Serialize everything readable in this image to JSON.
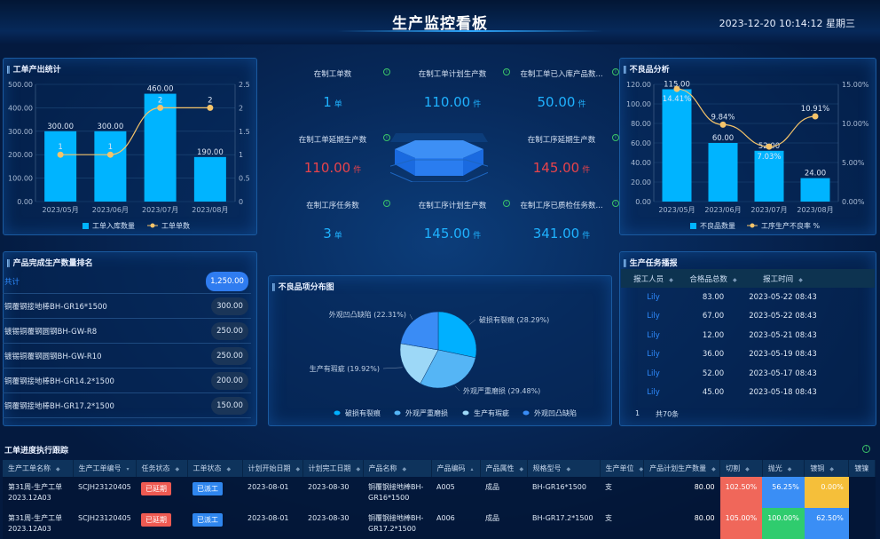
{
  "header": {
    "title": "生产监控看板",
    "datetime": "2023-12-20 10:14:12 星期三"
  },
  "output_panel": {
    "title": "工单产出统计"
  },
  "defect_panel": {
    "title": "不良品分析"
  },
  "kpis": [
    {
      "label": "在制工单数",
      "value": "1",
      "unit": "单",
      "color": "blue"
    },
    {
      "label": "在制工单计划生产数",
      "value": "110.00",
      "unit": "件",
      "color": "blue"
    },
    {
      "label": "在制工单已入库产品数...",
      "value": "50.00",
      "unit": "件",
      "color": "blue"
    },
    {
      "label": "在制工单延期生产数",
      "value": "110.00",
      "unit": "件",
      "color": "red"
    },
    {
      "label": "在制工序延期生产数",
      "value": "145.00",
      "unit": "件",
      "color": "red"
    },
    {
      "label": "在制工序任务数",
      "value": "3",
      "unit": "单",
      "color": "blue"
    },
    {
      "label": "在制工序计划生产数",
      "value": "145.00",
      "unit": "件",
      "color": "blue"
    },
    {
      "label": "在制工序已质检任务数...",
      "value": "341.00",
      "unit": "件",
      "color": "blue"
    }
  ],
  "ranking": {
    "title": "产品完成生产数量排名",
    "items": [
      {
        "name": "共计",
        "value": "1,250.00"
      },
      {
        "name": "铜覆钢接地棒BH-GR16*1500",
        "value": "300.00"
      },
      {
        "name": "镀锡铜覆钢圆钢BH-GW-R8",
        "value": "250.00"
      },
      {
        "name": "镀锡铜覆钢圆钢BH-GW-R10",
        "value": "250.00"
      },
      {
        "name": "铜覆钢接地棒BH-GR14.2*1500",
        "value": "200.00"
      },
      {
        "name": "铜覆钢接地棒BH-GR17.2*1500",
        "value": "150.00"
      }
    ]
  },
  "pie_panel": {
    "title": "不良品项分布图"
  },
  "tasks": {
    "title": "生产任务播报",
    "columns": [
      "报工人员",
      "合格品总数",
      "报工时间"
    ],
    "rows": [
      [
        "Lily",
        "83.00",
        "2023-05-22 08:43"
      ],
      [
        "Lily",
        "67.00",
        "2023-05-22 08:43"
      ],
      [
        "Lily",
        "12.00",
        "2023-05-21 08:43"
      ],
      [
        "Lily",
        "36.00",
        "2023-05-19 08:43"
      ],
      [
        "Lily",
        "52.00",
        "2023-05-17 08:43"
      ],
      [
        "Lily",
        "45.00",
        "2023-05-18 08:43"
      ]
    ],
    "total": "共70条",
    "page": "1"
  },
  "tracking": {
    "title": "工单进度执行跟踪",
    "columns": [
      "生产工单名称",
      "生产工单编号",
      "任务状态",
      "工单状态",
      "计划开始日期",
      "计划完工日期",
      "产品名称",
      "产品编码",
      "产品属性",
      "规格型号",
      "生产单位",
      "产品计划生产数量",
      "切割",
      "抛光",
      "镀铜",
      "镀镍"
    ],
    "rows": [
      {
        "name": "第31周-生产工单2023.12A03",
        "code": "SCJH23120405",
        "task_status": "已延期",
        "order_status": "已派工",
        "start": "2023-08-01",
        "end": "2023-08-30",
        "product": "铜覆钢接地棒BH-GR16*1500",
        "pcode": "A005",
        "attr": "成品",
        "spec": "BH-GR16*1500",
        "unit": "支",
        "qty": "80.00",
        "cut": "102.50%",
        "polish": "56.25%",
        "copper": "0.00%",
        "nickel": "",
        "colors": [
          "#f0675a",
          "#3a8ef5",
          "#f5bf3a"
        ]
      },
      {
        "name": "第31周-生产工单2023.12A03",
        "code": "SCJH23120405",
        "task_status": "已延期",
        "order_status": "已派工",
        "start": "2023-08-01",
        "end": "2023-08-30",
        "product": "铜覆钢接地棒BH-GR17.2*1500",
        "pcode": "A006",
        "attr": "成品",
        "spec": "BH-GR17.2*1500",
        "unit": "支",
        "qty": "80.00",
        "cut": "105.00%",
        "polish": "100.00%",
        "copper": "62.50%",
        "nickel": "",
        "colors": [
          "#f0675a",
          "#2fcc6e",
          "#3a8ef5"
        ]
      }
    ]
  },
  "chart_data": [
    {
      "type": "bar",
      "title": "工单产出统计",
      "categories": [
        "2023/05月",
        "2023/06月",
        "2023/07月",
        "2023/08月"
      ],
      "series": [
        {
          "name": "工单入库数量",
          "type": "bar",
          "axis": "left",
          "values": [
            300,
            300,
            460,
            190
          ],
          "labels": [
            "300.00",
            "300.00",
            "460.00",
            "190.00"
          ],
          "color": "#00b4ff"
        },
        {
          "name": "工单单数",
          "type": "line",
          "axis": "right",
          "values": [
            1,
            1,
            2,
            2
          ],
          "color": "#f5c46a"
        }
      ],
      "yticks_left": [
        "0.00",
        "100.00",
        "200.00",
        "300.00",
        "400.00",
        "500.00"
      ],
      "ylim_left": [
        0,
        500
      ],
      "yticks_right": [
        "0",
        "0.5",
        "1",
        "1.5",
        "2",
        "2.5"
      ],
      "ylim_right": [
        0,
        2.5
      ],
      "legend": "bottom"
    },
    {
      "type": "bar",
      "title": "不良品分析",
      "categories": [
        "2023/05月",
        "2023/06月",
        "2023/07月",
        "2023/08月"
      ],
      "series": [
        {
          "name": "不良品数量",
          "type": "bar",
          "axis": "left",
          "values": [
            115,
            60,
            52,
            24
          ],
          "labels": [
            "115.00",
            "60.00",
            "52.00",
            "24.00"
          ],
          "color": "#00b4ff"
        },
        {
          "name": "工序生产不良率 %",
          "type": "line",
          "axis": "right",
          "values": [
            14.41,
            9.84,
            7.03,
            10.91
          ],
          "labels": [
            "14.41%",
            "9.84%",
            "7.03%",
            "10.91%"
          ],
          "color": "#f5c46a"
        }
      ],
      "yticks_left": [
        "0.00",
        "20.00",
        "40.00",
        "60.00",
        "80.00",
        "100.00",
        "120.00"
      ],
      "ylim_left": [
        0,
        120
      ],
      "yticks_right": [
        "0.00%",
        "5.00%",
        "10.00%",
        "15.00%"
      ],
      "ylim_right": [
        0,
        15
      ],
      "legend": "bottom"
    },
    {
      "type": "pie",
      "title": "不良品项分布图",
      "slices": [
        {
          "name": "破损有裂痕",
          "value": 28.29,
          "label": "破损有裂痕 (28.29%)",
          "color": "#00b0ff"
        },
        {
          "name": "外观严重磨损",
          "value": 29.48,
          "label": "外观严重磨损 (29.48%)",
          "color": "#55b5f5"
        },
        {
          "name": "生产有瑕疵",
          "value": 19.92,
          "label": "生产有瑕疵 (19.92%)",
          "color": "#9dd8f7"
        },
        {
          "name": "外观凹凸缺陷",
          "value": 22.31,
          "label": "外观凹凸缺陷 (22.31%)",
          "color": "#3a8cf5"
        }
      ],
      "legend": "bottom"
    }
  ]
}
